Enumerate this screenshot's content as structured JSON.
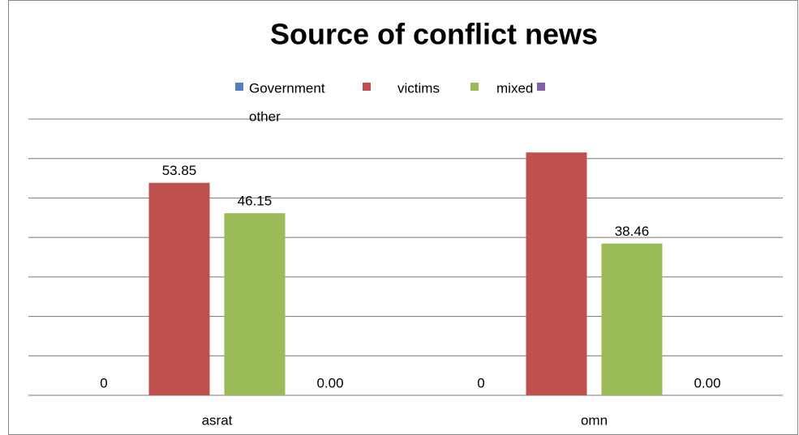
{
  "chart_data": {
    "type": "bar",
    "title": "Source of conflict news",
    "categories": [
      "asrat",
      "omn"
    ],
    "series": [
      {
        "name": "Government",
        "color": "#4f81bd",
        "values": [
          0,
          0
        ]
      },
      {
        "name": "victims",
        "color": "#c0504d",
        "values": [
          53.85,
          61.54
        ],
        "value_labels": [
          "53.85",
          null
        ]
      },
      {
        "name": "mixed",
        "color": "#9bbb59",
        "values": [
          46.15,
          38.46
        ]
      },
      {
        "name": "other",
        "color": "#8064a2",
        "values": [
          0,
          0
        ],
        "value_labels": [
          "0.00",
          "0.00"
        ]
      }
    ],
    "ylim": [
      0,
      70
    ],
    "yticks": [
      0,
      10,
      20,
      30,
      40,
      50,
      60,
      70
    ],
    "grid": true,
    "legend": "top"
  }
}
